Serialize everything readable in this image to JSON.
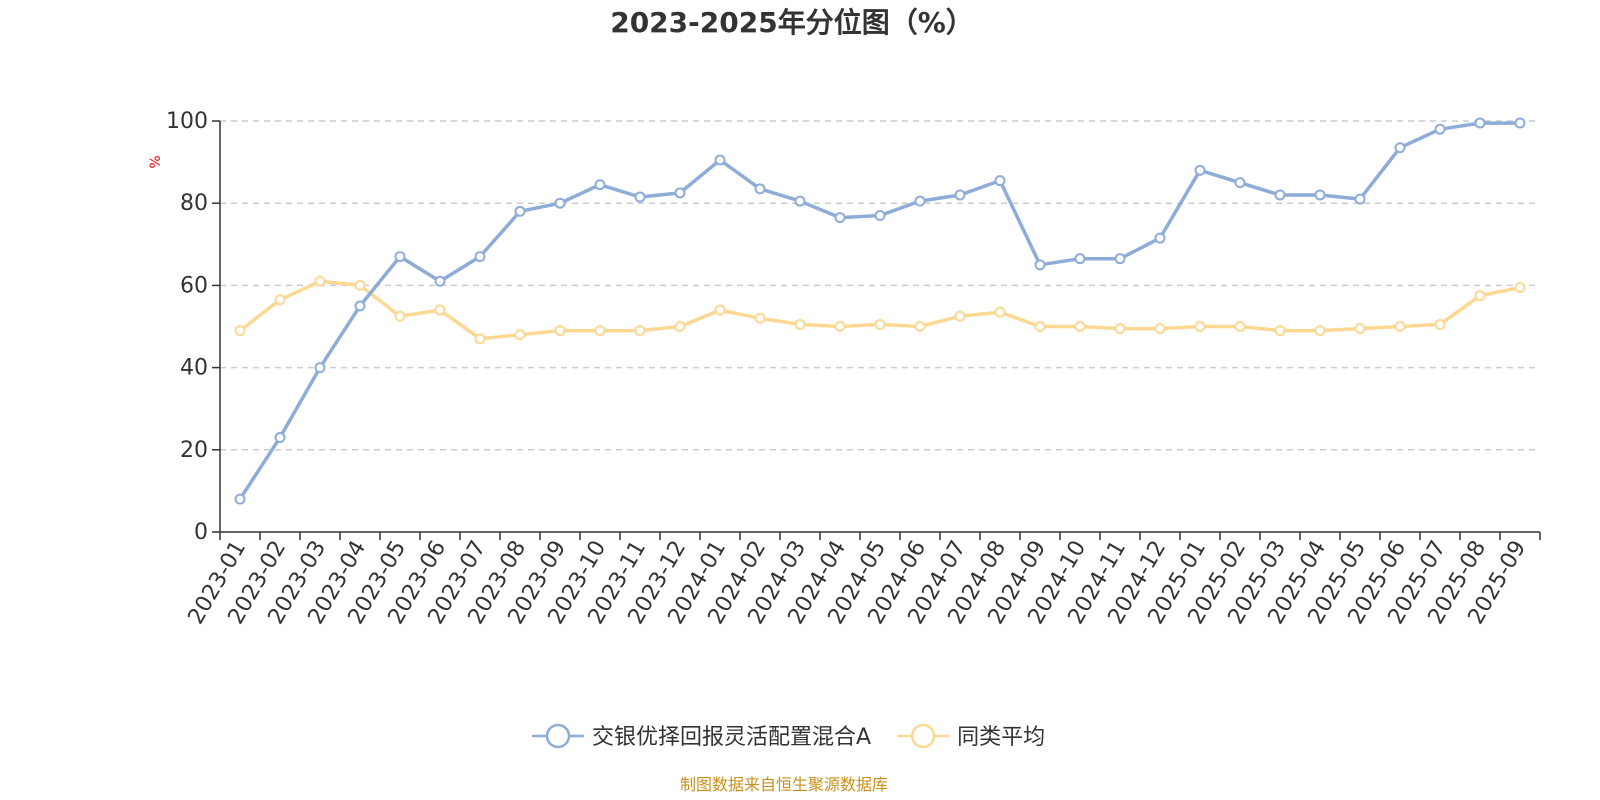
{
  "source_text": "制图数据来自恒生聚源数据库",
  "colors": {
    "series_1": "#8eacd8",
    "series_2": "#fdd893",
    "unit": "#ff0000",
    "source": "#c8901e",
    "grid": "#cccccc",
    "axis": "#333333"
  },
  "chart_data": {
    "type": "line",
    "title": "2023-2025年分位图（%）",
    "ylabel": "%",
    "xlabel": "",
    "ylim": [
      0,
      100
    ],
    "yticks": [
      0,
      20,
      40,
      60,
      80,
      100
    ],
    "grid": true,
    "legend_position": "bottom-center",
    "categories": [
      "2023-01",
      "2023-02",
      "2023-03",
      "2023-04",
      "2023-05",
      "2023-06",
      "2023-07",
      "2023-08",
      "2023-09",
      "2023-10",
      "2023-11",
      "2023-12",
      "2024-01",
      "2024-02",
      "2024-03",
      "2024-04",
      "2024-05",
      "2024-06",
      "2024-07",
      "2024-08",
      "2024-09",
      "2024-10",
      "2024-11",
      "2024-12",
      "2025-01",
      "2025-02",
      "2025-03",
      "2025-04",
      "2025-05",
      "2025-06",
      "2025-07",
      "2025-08",
      "2025-09"
    ],
    "series": [
      {
        "name": "交银优择回报灵活配置混合A",
        "values": [
          8,
          23,
          40,
          55,
          67,
          61,
          67,
          78,
          80,
          84.5,
          81.5,
          82.5,
          90.5,
          83.5,
          80.5,
          76.5,
          77,
          80.5,
          82,
          85.5,
          65,
          66.5,
          66.5,
          71.5,
          88,
          85,
          82,
          82,
          81,
          93.5,
          98,
          99.5,
          99.5
        ]
      },
      {
        "name": "同类平均",
        "values": [
          49,
          56.5,
          61,
          60,
          52.5,
          54,
          47,
          48,
          49,
          49,
          49,
          50,
          54,
          52,
          50.5,
          50,
          50.5,
          50,
          52.5,
          53.5,
          50,
          50,
          49.5,
          49.5,
          50,
          50,
          49,
          49,
          49.5,
          50,
          50.5,
          57.5,
          59.5
        ]
      }
    ]
  }
}
